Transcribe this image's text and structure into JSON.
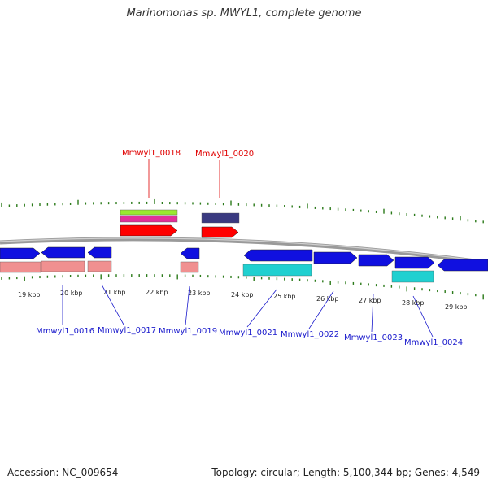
{
  "title": "Marinomonas sp. MWYL1, complete genome",
  "accession": "Accession: NC_009654",
  "summary": "Topology: circular; Length: 5,100,344 bp; Genes: 4,549",
  "colors": {
    "backbone": "#888888",
    "gene_forward": "#1010e0",
    "gene_reverse": "#1010e0",
    "tick": "#2b7a1a",
    "label_top": "#e00000",
    "label_bottom": "#1a1acc",
    "salmon": "#f09090",
    "cyan": "#20d0d0",
    "red": "#ff0000",
    "pink": "#e0309a",
    "lime": "#99e830",
    "navy": "#3a3a80"
  },
  "kbp_labels": [
    "19 kbp",
    "20 kbp",
    "21 kbp",
    "22 kbp",
    "23 kbp",
    "24 kbp",
    "25 kbp",
    "26 kbp",
    "27 kbp",
    "28 kbp",
    "29 kbp"
  ],
  "top_labels": [
    "Mmwyl1_0018",
    "Mmwyl1_0020"
  ],
  "bottom_labels": [
    "Mmwyl1_0016",
    "Mmwyl1_0017",
    "Mmwyl1_0019",
    "Mmwyl1_0021",
    "Mmwyl1_0022",
    "Mmwyl1_0023",
    "Mmwyl1_0024"
  ]
}
